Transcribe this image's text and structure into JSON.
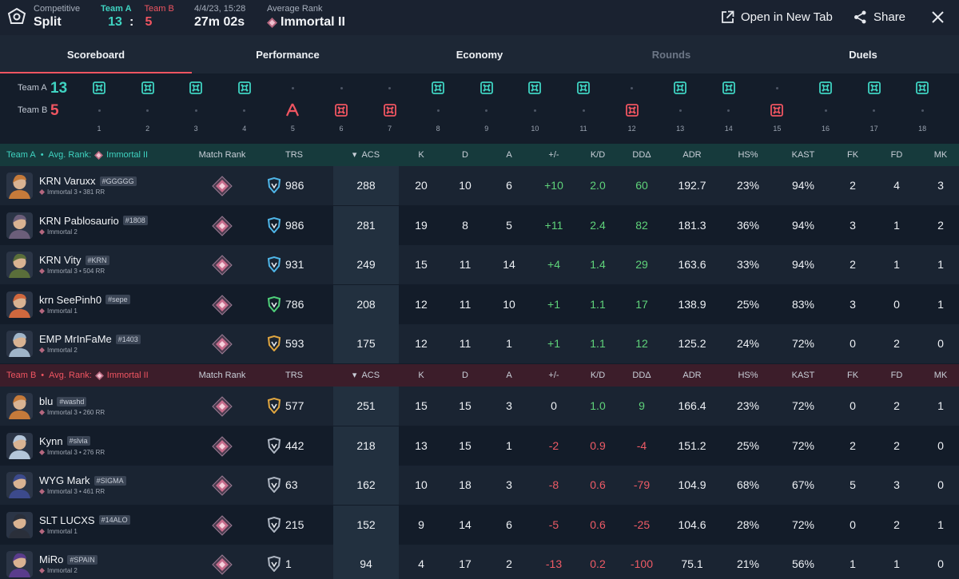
{
  "header": {
    "mode_label": "Competitive",
    "map": "Split",
    "team_a_label": "Team A",
    "team_b_label": "Team B",
    "team_a_score": "13",
    "score_sep": ":",
    "team_b_score": "5",
    "date": "4/4/23, 15:28",
    "duration": "27m 02s",
    "avg_rank_label": "Average Rank",
    "avg_rank": "Immortal II",
    "open_new_tab": "Open in New Tab",
    "share": "Share"
  },
  "tabs": [
    {
      "label": "Scoreboard",
      "active": true
    },
    {
      "label": "Performance"
    },
    {
      "label": "Economy"
    },
    {
      "label": "Rounds",
      "disabled": true
    },
    {
      "label": "Duels"
    }
  ],
  "rounds": {
    "team_a_label": "Team A",
    "team_b_label": "Team B",
    "team_a_score": "13",
    "team_b_score": "5",
    "numbers": [
      "1",
      "2",
      "3",
      "4",
      "5",
      "6",
      "7",
      "8",
      "9",
      "10",
      "11",
      "12",
      "13",
      "14",
      "15",
      "16",
      "17",
      "18"
    ],
    "winners": [
      "A",
      "A",
      "A",
      "A",
      "B",
      "B",
      "B",
      "A",
      "A",
      "A",
      "A",
      "B",
      "A",
      "A",
      "B",
      "A",
      "A",
      "A"
    ],
    "win_types": [
      "elim",
      "elim",
      "elim",
      "elim",
      "defuse",
      "elim",
      "elim",
      "elim",
      "elim",
      "elim",
      "elim",
      "elim",
      "elim",
      "elim",
      "elim",
      "elim",
      "elim",
      "elim"
    ]
  },
  "columns": {
    "match_rank": "Match Rank",
    "trs": "TRS",
    "acs": "ACS",
    "k": "K",
    "d": "D",
    "a": "A",
    "pm": "+/-",
    "kd": "K/D",
    "dda": "DDΔ",
    "adr": "ADR",
    "hs": "HS%",
    "kast": "KAST",
    "fk": "FK",
    "fd": "FD",
    "mk": "MK"
  },
  "team_a_section": {
    "title": "Team A",
    "dot": "•",
    "avg_label": "Avg. Rank:",
    "rank": "Immortal II"
  },
  "team_b_section": {
    "title": "Team B",
    "dot": "•",
    "avg_label": "Avg. Rank:",
    "rank": "Immortal II"
  },
  "team_a_players": [
    {
      "name": "KRN Varuxx",
      "tag": "#GGGGG",
      "rank": "Immortal 3 • 381 RR",
      "trs": "986",
      "trs_tier": "blue",
      "acs": "288",
      "k": "20",
      "d": "10",
      "a": "6",
      "pm": "+10",
      "kd": "2.0",
      "dda": "60",
      "adr": "192.7",
      "hs": "23%",
      "kast": "94%",
      "fk": "2",
      "fd": "4",
      "mk": "3",
      "agent_color": "#c57a3a"
    },
    {
      "name": "KRN Pablosaurio",
      "tag": "#1808",
      "rank": "Immortal 2",
      "trs": "986",
      "trs_tier": "blue",
      "acs": "281",
      "k": "19",
      "d": "8",
      "a": "5",
      "pm": "+11",
      "kd": "2.4",
      "dda": "82",
      "adr": "181.3",
      "hs": "36%",
      "kast": "94%",
      "fk": "3",
      "fd": "1",
      "mk": "2",
      "agent_color": "#6b5e7a"
    },
    {
      "name": "KRN Vity",
      "tag": "#KRN",
      "rank": "Immortal 3 • 504 RR",
      "trs": "931",
      "trs_tier": "blue",
      "acs": "249",
      "k": "15",
      "d": "11",
      "a": "14",
      "pm": "+4",
      "kd": "1.4",
      "dda": "29",
      "adr": "163.6",
      "hs": "33%",
      "kast": "94%",
      "fk": "2",
      "fd": "1",
      "mk": "1",
      "agent_color": "#5a6e3a"
    },
    {
      "name": "krn SeePinh0",
      "tag": "#sepe",
      "rank": "Immortal 1",
      "trs": "786",
      "trs_tier": "green",
      "acs": "208",
      "k": "12",
      "d": "11",
      "a": "10",
      "pm": "+1",
      "kd": "1.1",
      "dda": "17",
      "adr": "138.9",
      "hs": "25%",
      "kast": "83%",
      "fk": "3",
      "fd": "0",
      "mk": "1",
      "agent_color": "#d0683e"
    },
    {
      "name": "EMP MrInFaMe",
      "tag": "#1403",
      "rank": "Immortal 2",
      "trs": "593",
      "trs_tier": "gold",
      "acs": "175",
      "k": "12",
      "d": "11",
      "a": "1",
      "pm": "+1",
      "kd": "1.1",
      "dda": "12",
      "adr": "125.2",
      "hs": "24%",
      "kast": "72%",
      "fk": "0",
      "fd": "2",
      "mk": "0",
      "agent_color": "#9fb4c8"
    }
  ],
  "team_b_players": [
    {
      "name": "blu",
      "tag": "#washd",
      "rank": "Immortal 3 • 260 RR",
      "trs": "577",
      "trs_tier": "gold",
      "acs": "251",
      "k": "15",
      "d": "15",
      "a": "3",
      "pm": "0",
      "kd": "1.0",
      "dda": "9",
      "adr": "166.4",
      "hs": "23%",
      "kast": "72%",
      "fk": "0",
      "fd": "2",
      "mk": "1",
      "agent_color": "#c57a3a"
    },
    {
      "name": "Kynn",
      "tag": "#slvia",
      "rank": "Immortal 3 • 276 RR",
      "trs": "442",
      "trs_tier": "grey",
      "acs": "218",
      "k": "13",
      "d": "15",
      "a": "1",
      "pm": "-2",
      "kd": "0.9",
      "dda": "-4",
      "adr": "151.2",
      "hs": "25%",
      "kast": "72%",
      "fk": "2",
      "fd": "2",
      "mk": "0",
      "agent_color": "#b4c6da"
    },
    {
      "name": "WYG Mark",
      "tag": "#SIGMA",
      "rank": "Immortal 3 • 461 RR",
      "trs": "63",
      "trs_tier": "grey",
      "acs": "162",
      "k": "10",
      "d": "18",
      "a": "3",
      "pm": "-8",
      "kd": "0.6",
      "dda": "-79",
      "adr": "104.9",
      "hs": "68%",
      "kast": "67%",
      "fk": "5",
      "fd": "3",
      "mk": "0",
      "agent_color": "#3c4a8c"
    },
    {
      "name": "SLT LUCXS",
      "tag": "#14ALO",
      "rank": "Immortal 1",
      "trs": "215",
      "trs_tier": "grey",
      "acs": "152",
      "k": "9",
      "d": "14",
      "a": "6",
      "pm": "-5",
      "kd": "0.6",
      "dda": "-25",
      "adr": "104.6",
      "hs": "28%",
      "kast": "72%",
      "fk": "0",
      "fd": "2",
      "mk": "1",
      "agent_color": "#2a2f3a"
    },
    {
      "name": "MiRo",
      "tag": "#SPAIN",
      "rank": "Immortal 2",
      "trs": "1",
      "trs_tier": "grey",
      "acs": "94",
      "k": "4",
      "d": "17",
      "a": "2",
      "pm": "-13",
      "kd": "0.2",
      "dda": "-100",
      "adr": "75.1",
      "hs": "21%",
      "kast": "56%",
      "fk": "1",
      "fd": "1",
      "mk": "0",
      "agent_color": "#5a3c8c"
    }
  ],
  "colors": {
    "team_a": "#3fd3c1",
    "team_b": "#f05561",
    "positive": "#5fd37a",
    "negative": "#ef5b66"
  }
}
